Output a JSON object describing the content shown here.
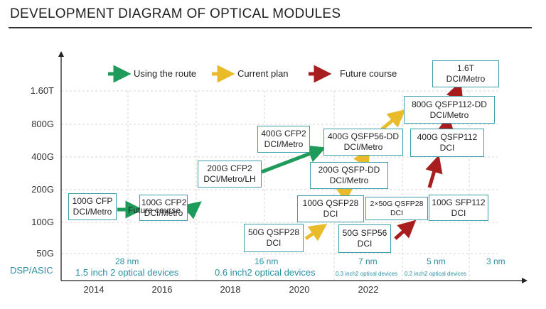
{
  "title": "DEVELOPMENT DIAGRAM OF OPTICAL MODULES",
  "legend": {
    "route": "Using the route",
    "current": "Current plan",
    "future": "Future course"
  },
  "y_labels": [
    "1.60T",
    "800G",
    "400G",
    "200G",
    "100G",
    "50G"
  ],
  "dsp_label": "DSP/ASIC",
  "x_labels": [
    "2014",
    "2016",
    "2018",
    "2020",
    "2022"
  ],
  "nodes": [
    "28 nm",
    "16 nm",
    "7 nm",
    "5 nm",
    "3 nm"
  ],
  "devices": [
    "1.5 inch 2 optical devices",
    "0.6 inch2 optical devices",
    "0.3 inch2 optical devices",
    "0.2 inch2 optical devices"
  ],
  "overlap_note": "Future course",
  "modules": {
    "m1": [
      "100G CFP",
      "DCI/Metro"
    ],
    "m2": [
      "100G CFP2",
      "DCI/Metro"
    ],
    "m3": [
      "200G CFP2",
      "DCI/Metro/LH"
    ],
    "m4": [
      "400G CFP2",
      "DCI/Metro"
    ],
    "m5": [
      "400G QSFP56-DD",
      "DCI/Metro"
    ],
    "m6": [
      "200G QSFP-DD",
      "DCI/Metro"
    ],
    "m7": [
      "100G QSFP28",
      "DCI"
    ],
    "m8": [
      "50G QSFP28",
      "DCI"
    ],
    "m9": [
      "2×50G QSFP28",
      "DCI"
    ],
    "m10": [
      "50G SFP56",
      "DCI"
    ],
    "m11": [
      "100G SFP112",
      "DCI"
    ],
    "m12": [
      "400G QSFP112",
      "DCI"
    ],
    "m13": [
      "800G QSFP112-DD",
      "DCI/Metro"
    ],
    "m14": [
      "1.6T",
      "DCI/Metro"
    ]
  },
  "colors": {
    "route": "#1e9a5a",
    "current": "#e9bb2a",
    "future": "#a81e1e",
    "box_border": "#3a9fa8",
    "accent": "#2b8fa3"
  }
}
